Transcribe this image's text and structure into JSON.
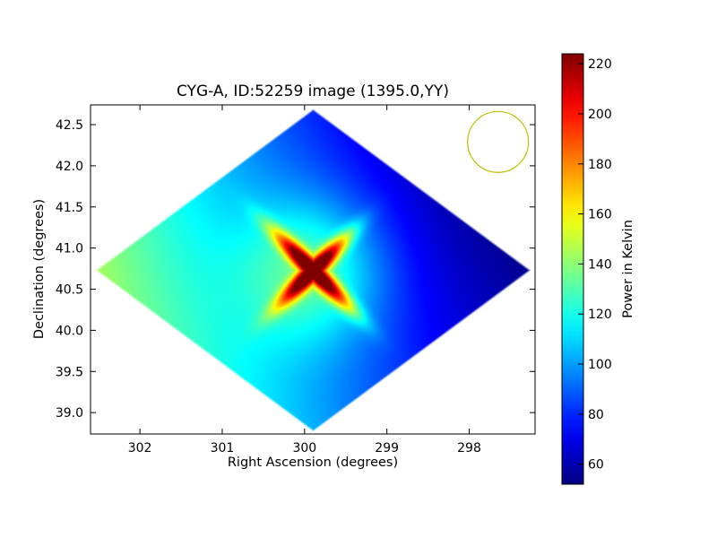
{
  "chart_data": {
    "type": "heatmap",
    "title": "CYG-A, ID:52259 image (1395.0,YY)",
    "xlabel": "Right Ascension (degrees)",
    "ylabel": "Declination (degrees)",
    "xlim": [
      302.6,
      297.2
    ],
    "ylim": [
      38.74,
      42.74
    ],
    "x_ticks": [
      302,
      301,
      300,
      299,
      298
    ],
    "y_ticks": [
      39.0,
      39.5,
      40.0,
      40.5,
      41.0,
      41.5,
      42.0,
      42.5
    ],
    "y_tick_labels": [
      "39.0",
      "39.5",
      "40.0",
      "40.5",
      "41.0",
      "41.5",
      "42.0",
      "42.5"
    ],
    "grid": false,
    "coverage_region": {
      "shape": "diamond",
      "vertices": [
        [
          302.55,
          40.72
        ],
        [
          299.95,
          42.7
        ],
        [
          297.25,
          40.7
        ],
        [
          299.95,
          38.77
        ]
      ]
    },
    "source": {
      "name": "CYG-A",
      "ra": 299.9,
      "dec": 40.73,
      "peak_kelvin": 225
    },
    "field_samples": {
      "note_colormap": "jet",
      "east_edge_kelvin": 145,
      "south_kelvin": 115,
      "north_kelvin": 75,
      "west_kelvin": 55
    },
    "beam": {
      "ra": 297.65,
      "dec": 42.29,
      "radius_deg": 0.37,
      "color": "#bfbf00"
    },
    "colorbar": {
      "label": "Power in Kelvin",
      "min": 52,
      "max": 224,
      "ticks": [
        60,
        80,
        100,
        120,
        140,
        160,
        180,
        200,
        220
      ],
      "colormap": "jet"
    }
  }
}
